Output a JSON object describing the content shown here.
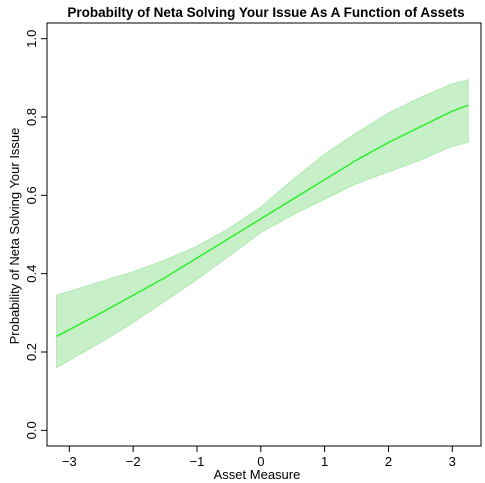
{
  "chart_data": {
    "type": "line",
    "title": "Probabilty of Neta Solving Your Issue As A Function of Assets",
    "xlabel": "Asset Measure",
    "ylabel": "Probability of Neta Solving Your Issue",
    "xlim": [
      -3.35,
      3.45
    ],
    "ylim": [
      -0.04,
      1.04
    ],
    "x_ticks": [
      -3,
      -2,
      -1,
      0,
      1,
      2,
      3
    ],
    "x_tick_labels": [
      "−3",
      "−2",
      "−1",
      "0",
      "1",
      "2",
      "3"
    ],
    "y_ticks": [
      0.0,
      0.2,
      0.4,
      0.6,
      0.8,
      1.0
    ],
    "y_tick_labels": [
      "0.0",
      "0.2",
      "0.4",
      "0.6",
      "0.8",
      "1.0"
    ],
    "grid": false,
    "colors": {
      "line": "#22ee22",
      "band": "#c8f0c8",
      "band_edge": "#a8e6a8"
    },
    "series": [
      {
        "x": [
          -3.2,
          -2.5,
          -2.0,
          -1.5,
          -1.0,
          -0.5,
          0.0,
          0.5,
          1.0,
          1.5,
          2.0,
          2.5,
          3.0,
          3.25
        ],
        "y": [
          0.24,
          0.3,
          0.345,
          0.39,
          0.44,
          0.49,
          0.54,
          0.59,
          0.64,
          0.69,
          0.735,
          0.775,
          0.815,
          0.83
        ],
        "lower": [
          0.16,
          0.225,
          0.275,
          0.33,
          0.385,
          0.445,
          0.505,
          0.55,
          0.59,
          0.63,
          0.66,
          0.69,
          0.725,
          0.735
        ],
        "upper": [
          0.345,
          0.38,
          0.405,
          0.435,
          0.47,
          0.515,
          0.57,
          0.64,
          0.705,
          0.76,
          0.81,
          0.85,
          0.885,
          0.895
        ]
      }
    ]
  }
}
